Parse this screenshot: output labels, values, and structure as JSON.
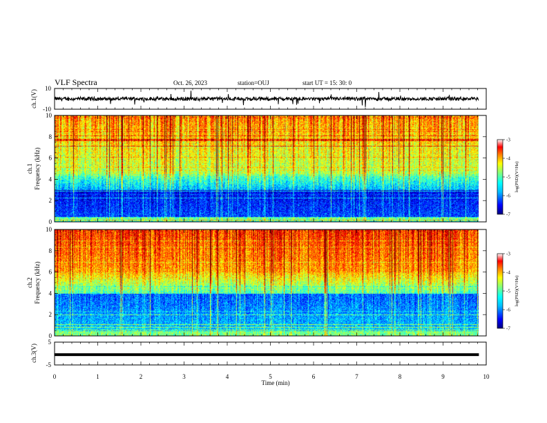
{
  "header": {
    "title": "VLF Spectra",
    "date": "Oct. 26, 2023",
    "station": "station=OUJ",
    "start_ut": "start  UT =   15: 30: 0"
  },
  "colors": {
    "scale": [
      "#00007f",
      "#0000ff",
      "#007fff",
      "#00ffff",
      "#7fff7f",
      "#ffff00",
      "#ff7f00",
      "#ff0000",
      "#7f0000"
    ]
  },
  "chart_data": [
    {
      "type": "line",
      "name": "waveform-ch1",
      "ylabel": "ch.1(V)",
      "ylim": [
        -10,
        10
      ],
      "yticks": [
        "10",
        "-10"
      ],
      "xlim": [
        0,
        10
      ],
      "note_values": "noisy waveform centered near 0 V with amplitude about ±2 V and occasional spikes"
    },
    {
      "type": "heatmap",
      "name": "spectrogram-ch1",
      "ylabel_line1": "ch.1",
      "ylabel_line2": "Frequency (kHz)",
      "ylim": [
        0,
        10
      ],
      "yticks": [
        "0",
        "2",
        "4",
        "6",
        "8",
        "10"
      ],
      "xlim": [
        0,
        10
      ],
      "colorbar": {
        "label": "log(PSD)(V²/Hz)",
        "range": [
          -7,
          -3
        ],
        "ticks": [
          "-3",
          "-4",
          "-5",
          "-6",
          "-7"
        ]
      }
    },
    {
      "type": "heatmap",
      "name": "spectrogram-ch2",
      "ylabel_line1": "ch.2",
      "ylabel_line2": "Frequency (kHz)",
      "ylim": [
        0,
        10
      ],
      "yticks": [
        "0",
        "2",
        "4",
        "6",
        "8",
        "10"
      ],
      "xlim": [
        0,
        10
      ],
      "colorbar": {
        "label": "log(PSD)(V²/Hz)",
        "range": [
          -7,
          -3
        ],
        "ticks": [
          "-3",
          "-4",
          "-5",
          "-6",
          "-7"
        ]
      }
    },
    {
      "type": "line",
      "name": "waveform-ch3",
      "ylabel": "ch.3(V)",
      "ylim": [
        -5,
        5
      ],
      "yticks": [
        "5",
        "-5"
      ],
      "xlim": [
        0,
        10
      ],
      "value_constant": -0.5
    }
  ],
  "xaxis": {
    "label": "Time  (min)",
    "ticks": [
      "0",
      "1",
      "2",
      "3",
      "4",
      "5",
      "6",
      "7",
      "8",
      "9",
      "10"
    ],
    "data_end_min": 9.83
  }
}
